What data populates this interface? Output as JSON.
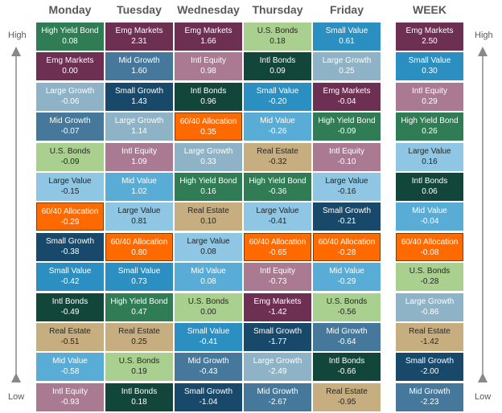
{
  "columns": [
    {
      "header": "Monday",
      "cells": [
        {
          "label": "High Yield Bond",
          "value": "0.08"
        },
        {
          "label": "Emg Markets",
          "value": "0.00"
        },
        {
          "label": "Large Growth",
          "value": "-0.06"
        },
        {
          "label": "Mid Growth",
          "value": "-0.07"
        },
        {
          "label": "U.S. Bonds",
          "value": "-0.09"
        },
        {
          "label": "Large Value",
          "value": "-0.15"
        },
        {
          "label": "60/40 Allocation",
          "value": "-0.29"
        },
        {
          "label": "Small Growth",
          "value": "-0.38"
        },
        {
          "label": "Small Value",
          "value": "-0.42"
        },
        {
          "label": "Intl Bonds",
          "value": "-0.49"
        },
        {
          "label": "Real Estate",
          "value": "-0.51"
        },
        {
          "label": "Mid Value",
          "value": "-0.58"
        },
        {
          "label": "Intl Equity",
          "value": "-0.93"
        }
      ]
    },
    {
      "header": "Tuesday",
      "cells": [
        {
          "label": "Emg Markets",
          "value": "2.31"
        },
        {
          "label": "Mid Growth",
          "value": "1.60"
        },
        {
          "label": "Small Growth",
          "value": "1.43"
        },
        {
          "label": "Large Growth",
          "value": "1.14"
        },
        {
          "label": "Intl Equity",
          "value": "1.09"
        },
        {
          "label": "Mid Value",
          "value": "1.02"
        },
        {
          "label": "Large Value",
          "value": "0.81"
        },
        {
          "label": "60/40 Allocation",
          "value": "0.80"
        },
        {
          "label": "Small Value",
          "value": "0.73"
        },
        {
          "label": "High Yield Bond",
          "value": "0.47"
        },
        {
          "label": "Real Estate",
          "value": "0.25"
        },
        {
          "label": "U.S. Bonds",
          "value": "0.19"
        },
        {
          "label": "Intl Bonds",
          "value": "0.18"
        }
      ]
    },
    {
      "header": "Wednesday",
      "cells": [
        {
          "label": "Emg Markets",
          "value": "1.66"
        },
        {
          "label": "Intl Equity",
          "value": "0.98"
        },
        {
          "label": "Intl Bonds",
          "value": "0.96"
        },
        {
          "label": "60/40 Allocation",
          "value": "0.35"
        },
        {
          "label": "Large Growth",
          "value": "0.33"
        },
        {
          "label": "High Yield Bond",
          "value": "0.16"
        },
        {
          "label": "Real Estate",
          "value": "0.10"
        },
        {
          "label": "Large Value",
          "value": "0.08"
        },
        {
          "label": "Mid Value",
          "value": "0.08"
        },
        {
          "label": "U.S. Bonds",
          "value": "0.00"
        },
        {
          "label": "Small Value",
          "value": "-0.41"
        },
        {
          "label": "Mid Growth",
          "value": "-0.43"
        },
        {
          "label": "Small Growth",
          "value": "-1.04"
        }
      ]
    },
    {
      "header": "Thursday",
      "cells": [
        {
          "label": "U.S. Bonds",
          "value": "0.18"
        },
        {
          "label": "Intl Bonds",
          "value": "0.09"
        },
        {
          "label": "Small Value",
          "value": "-0.20"
        },
        {
          "label": "Mid Value",
          "value": "-0.26"
        },
        {
          "label": "Real Estate",
          "value": "-0.32"
        },
        {
          "label": "High Yield Bond",
          "value": "-0.36"
        },
        {
          "label": "Large Value",
          "value": "-0.41"
        },
        {
          "label": "60/40 Allocation",
          "value": "-0.65"
        },
        {
          "label": "Intl Equity",
          "value": "-0.73"
        },
        {
          "label": "Emg Markets",
          "value": "-1.42"
        },
        {
          "label": "Small Growth",
          "value": "-1.77"
        },
        {
          "label": "Large Growth",
          "value": "-2.49"
        },
        {
          "label": "Mid Growth",
          "value": "-2.67"
        }
      ]
    },
    {
      "header": "Friday",
      "cells": [
        {
          "label": "Small Value",
          "value": "0.61"
        },
        {
          "label": "Large Growth",
          "value": "0.25"
        },
        {
          "label": "Emg Markets",
          "value": "-0.04"
        },
        {
          "label": "High Yield Bond",
          "value": "-0.09"
        },
        {
          "label": "Intl Equity",
          "value": "-0.10"
        },
        {
          "label": "Large Value",
          "value": "-0.16"
        },
        {
          "label": "Small Growth",
          "value": "-0.21"
        },
        {
          "label": "60/40 Allocation",
          "value": "-0.28"
        },
        {
          "label": "Mid Value",
          "value": "-0.29"
        },
        {
          "label": "U.S. Bonds",
          "value": "-0.56"
        },
        {
          "label": "Mid Growth",
          "value": "-0.64"
        },
        {
          "label": "Intl Bonds",
          "value": "-0.66"
        },
        {
          "label": "Real Estate",
          "value": "-0.95"
        }
      ]
    },
    {
      "header": "WEEK",
      "cells": [
        {
          "label": "Emg Markets",
          "value": "2.50"
        },
        {
          "label": "Small Value",
          "value": "0.30"
        },
        {
          "label": "Intl Equity",
          "value": "0.29"
        },
        {
          "label": "High Yield Bond",
          "value": "0.26"
        },
        {
          "label": "Large Value",
          "value": "0.16"
        },
        {
          "label": "Intl Bonds",
          "value": "0.06"
        },
        {
          "label": "Mid Value",
          "value": "-0.04"
        },
        {
          "label": "60/40 Allocation",
          "value": "-0.08"
        },
        {
          "label": "U.S. Bonds",
          "value": "-0.28"
        },
        {
          "label": "Large Growth",
          "value": "-0.86"
        },
        {
          "label": "Real Estate",
          "value": "-1.42"
        },
        {
          "label": "Small Growth",
          "value": "-2.00"
        },
        {
          "label": "Mid Growth",
          "value": "-2.23"
        }
      ]
    }
  ],
  "high_label": "High",
  "low_label": "Low",
  "colors": {
    "High Yield Bond": "#2f7c55",
    "Emg Markets": "#6d2f52",
    "Large Growth": "#8fb3c6",
    "Mid Growth": "#45789a",
    "U.S. Bonds": "#a9d08e",
    "Large Value": "#8ec6e3",
    "60/40 Allocation": "#ff6a00",
    "Small Growth": "#18496b",
    "Small Value": "#2b8fc2",
    "Intl Bonds": "#13463a",
    "Real Estate": "#c6ae80",
    "Mid Value": "#59acd6",
    "Intl Equity": "#a97a91"
  },
  "dark_text": [
    "U.S. Bonds",
    "Large Value",
    "Real Estate"
  ],
  "highlight": "60/40 Allocation"
}
